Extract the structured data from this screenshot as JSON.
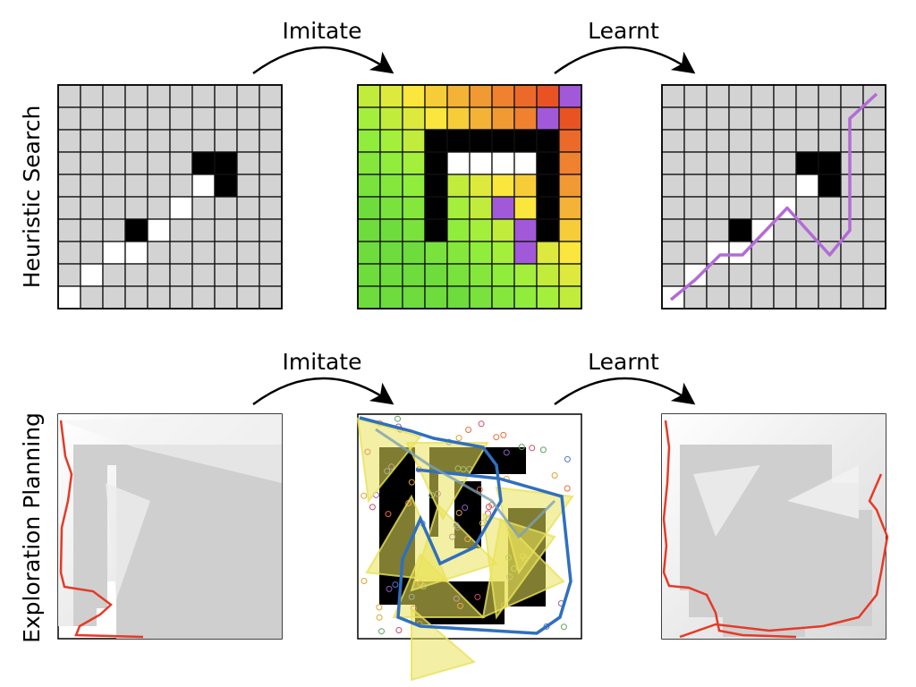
{
  "row_labels": {
    "top": "Heuristic Search",
    "bottom": "Exploration  Planning"
  },
  "arrow_labels": {
    "top_left": "Imitate",
    "top_right": "Learnt",
    "bottom_left": "Imitate",
    "bottom_right": "Learnt"
  },
  "grid": {
    "cols": 10,
    "rows": 10,
    "input_white_cells": [
      [
        9,
        0
      ],
      [
        8,
        1
      ],
      [
        7,
        2
      ],
      [
        7,
        3
      ],
      [
        6,
        4
      ],
      [
        5,
        5
      ],
      [
        4,
        6
      ]
    ],
    "input_black_cells": [
      [
        3,
        6
      ],
      [
        3,
        7
      ],
      [
        4,
        7
      ],
      [
        6,
        3
      ]
    ],
    "heatmap_black_cells": [
      [
        2,
        3
      ],
      [
        2,
        4
      ],
      [
        2,
        5
      ],
      [
        2,
        6
      ],
      [
        2,
        7
      ],
      [
        3,
        3
      ],
      [
        4,
        3
      ],
      [
        5,
        3
      ],
      [
        6,
        3
      ],
      [
        3,
        8
      ],
      [
        4,
        8
      ],
      [
        5,
        8
      ],
      [
        6,
        8
      ],
      [
        2,
        8
      ]
    ],
    "heatmap_white_cells": [
      [
        3,
        4
      ],
      [
        3,
        5
      ],
      [
        3,
        6
      ],
      [
        3,
        7
      ]
    ],
    "heatmap_purple_cells": [
      [
        0,
        9
      ],
      [
        1,
        8
      ],
      [
        2,
        8
      ],
      [
        3,
        8
      ],
      [
        4,
        8
      ],
      [
        5,
        8
      ],
      [
        6,
        8
      ],
      [
        6,
        7
      ],
      [
        7,
        7
      ],
      [
        5,
        6
      ]
    ],
    "learnt_path": [
      [
        0.4,
        9.6
      ],
      [
        1.5,
        8.7
      ],
      [
        2.6,
        7.6
      ],
      [
        3.6,
        7.6
      ],
      [
        5.6,
        5.5
      ],
      [
        7.5,
        7.6
      ],
      [
        8.4,
        6.5
      ],
      [
        8.4,
        1.5
      ],
      [
        9.6,
        0.4
      ]
    ]
  },
  "colors": {
    "grid_cell": "#d3d3d3",
    "obstacle": "#000000",
    "free": "#ffffff",
    "path": "#b36bd6",
    "expanded": "#a259d9",
    "exploration_path": "#e53a27",
    "planned_path": "#2f6fbf",
    "cone_fill": "#e9e25a",
    "arrow": "#000000"
  }
}
